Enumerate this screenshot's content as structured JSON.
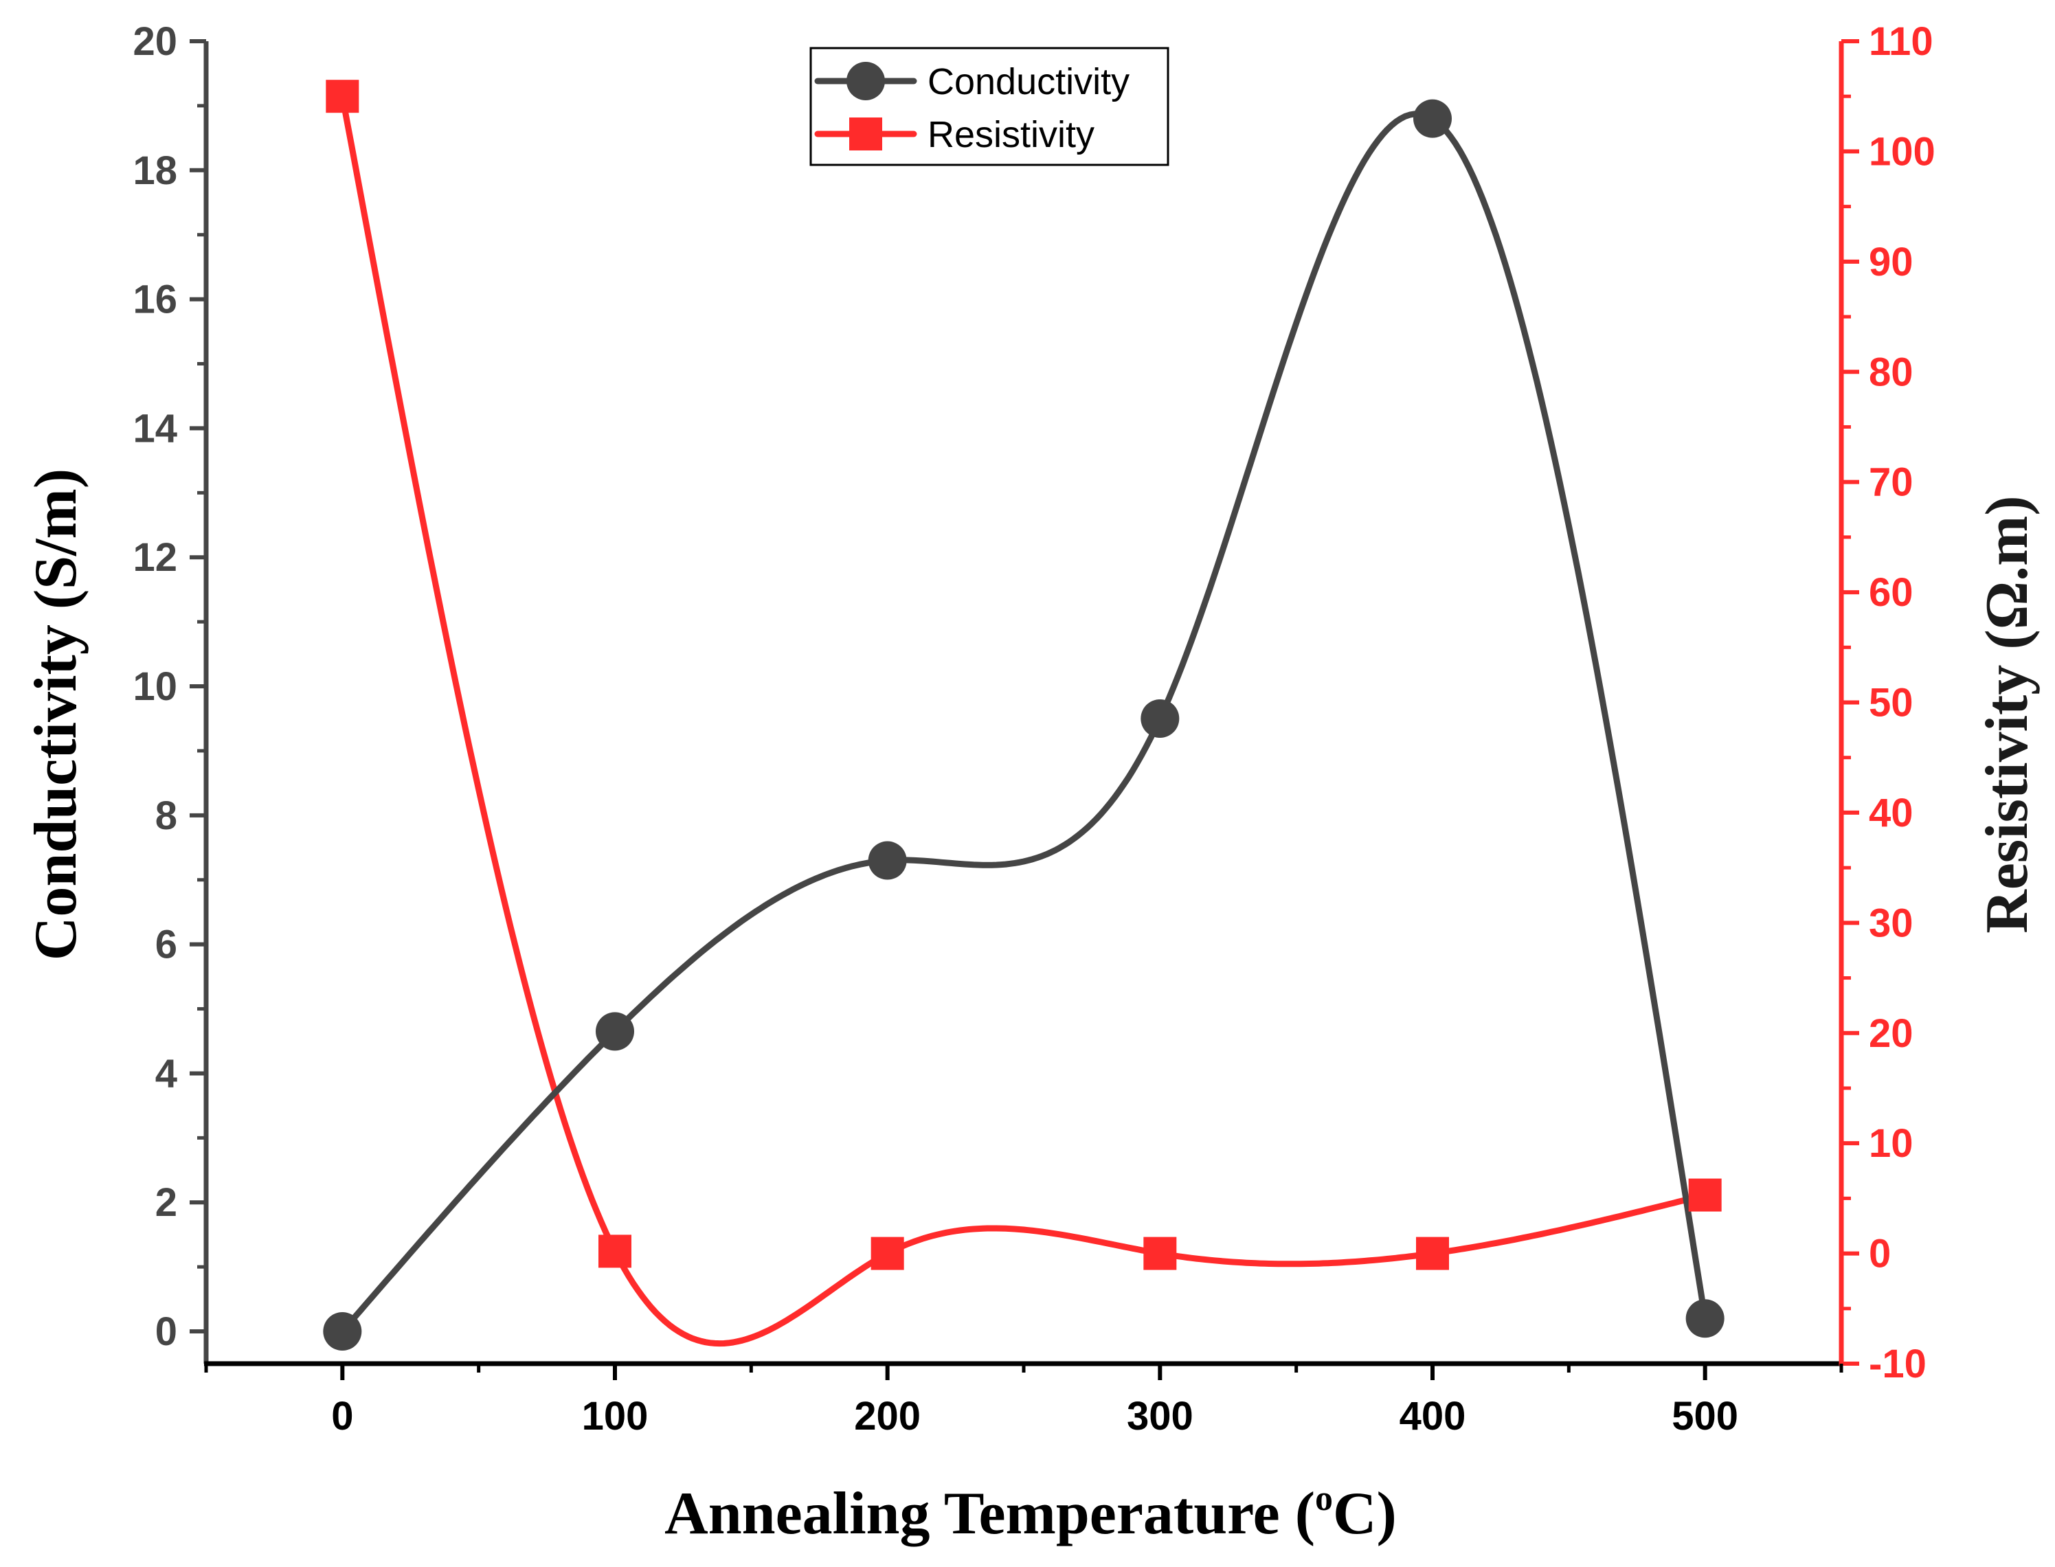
{
  "chart_data": {
    "type": "line",
    "title": "",
    "xlabel": "Annealing Temperature (°C)",
    "xlabel_parts": {
      "prefix": "Annealing Temperature (",
      "sup": "o",
      "suffix": "C)"
    },
    "x": [
      0,
      100,
      200,
      300,
      400,
      500
    ],
    "xlim": [
      -50,
      550
    ],
    "x_ticks": [
      0,
      100,
      200,
      300,
      400,
      500
    ],
    "y_left": {
      "label": "Conductivity (S/m)",
      "lim": [
        -0.5,
        20
      ],
      "ticks": [
        0,
        2,
        4,
        6,
        8,
        10,
        12,
        14,
        16,
        18,
        20
      ]
    },
    "y_right": {
      "label": "Resistivity (Ω.m)",
      "lim": [
        -10,
        110
      ],
      "ticks": [
        -10,
        0,
        10,
        20,
        30,
        40,
        50,
        60,
        70,
        80,
        90,
        100,
        110
      ]
    },
    "series": [
      {
        "name": "Conductivity",
        "axis": "left",
        "marker": "circle",
        "color": "#454545",
        "values": [
          0.0,
          4.65,
          7.3,
          9.5,
          18.8,
          0.2
        ]
      },
      {
        "name": "Resistivity",
        "axis": "right",
        "marker": "square",
        "color": "#ff2b2b",
        "values": [
          105,
          0.2,
          0.0,
          0.0,
          0.0,
          5.3
        ]
      }
    ],
    "legend": "top-center"
  }
}
